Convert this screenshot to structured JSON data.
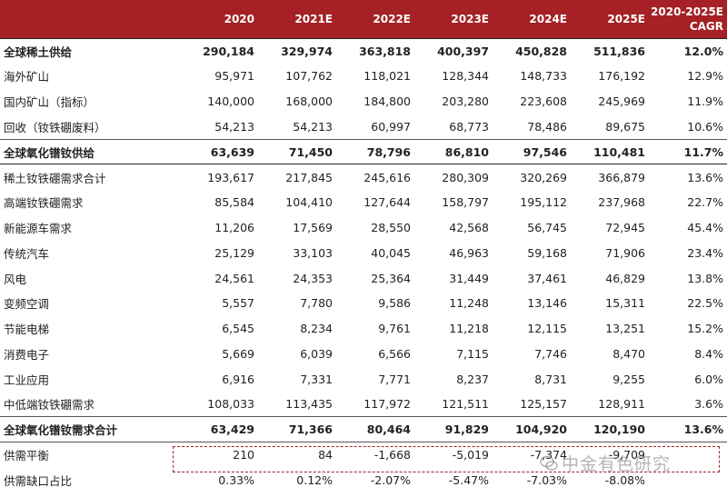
{
  "header": {
    "label": "",
    "years": [
      "2020",
      "2021E",
      "2022E",
      "2023E",
      "2024E",
      "2025E"
    ],
    "cagr_line1": "2020-2025E",
    "cagr_line2": "CAGR"
  },
  "rows": [
    {
      "label": "全球稀土供给",
      "values": [
        "290,184",
        "329,974",
        "363,818",
        "400,397",
        "450,828",
        "511,836"
      ],
      "cagr": "12.0%"
    },
    {
      "label": "海外矿山",
      "values": [
        "95,971",
        "107,762",
        "118,021",
        "128,344",
        "148,733",
        "176,192"
      ],
      "cagr": "12.9%"
    },
    {
      "label": "国内矿山（指标）",
      "values": [
        "140,000",
        "168,000",
        "184,800",
        "203,280",
        "223,608",
        "245,969"
      ],
      "cagr": "11.9%"
    },
    {
      "label": "回收（钕铁硼废料）",
      "values": [
        "54,213",
        "54,213",
        "60,997",
        "68,773",
        "78,486",
        "89,675"
      ],
      "cagr": "10.6%"
    },
    {
      "label": "全球氧化镨钕供给",
      "values": [
        "63,639",
        "71,450",
        "78,796",
        "86,810",
        "97,546",
        "110,481"
      ],
      "cagr": "11.7%"
    },
    {
      "label": "稀土钕铁硼需求合计",
      "values": [
        "193,617",
        "217,845",
        "245,616",
        "280,309",
        "320,269",
        "366,879"
      ],
      "cagr": "13.6%"
    },
    {
      "label": "高端钕铁硼需求",
      "values": [
        "85,584",
        "104,410",
        "127,644",
        "158,797",
        "195,112",
        "237,968"
      ],
      "cagr": "22.7%"
    },
    {
      "label": "新能源车需求",
      "values": [
        "11,206",
        "17,569",
        "28,550",
        "42,568",
        "56,745",
        "72,945"
      ],
      "cagr": "45.4%"
    },
    {
      "label": "传统汽车",
      "values": [
        "25,129",
        "33,103",
        "40,045",
        "46,963",
        "59,168",
        "71,906"
      ],
      "cagr": "23.4%"
    },
    {
      "label": "风电",
      "values": [
        "24,561",
        "24,353",
        "25,364",
        "31,449",
        "37,461",
        "46,829"
      ],
      "cagr": "13.8%"
    },
    {
      "label": "变频空调",
      "values": [
        "5,557",
        "7,780",
        "9,586",
        "11,248",
        "13,146",
        "15,311"
      ],
      "cagr": "22.5%"
    },
    {
      "label": "节能电梯",
      "values": [
        "6,545",
        "8,234",
        "9,761",
        "11,218",
        "12,115",
        "13,251"
      ],
      "cagr": "15.2%"
    },
    {
      "label": "消费电子",
      "values": [
        "5,669",
        "6,039",
        "6,566",
        "7,115",
        "7,746",
        "8,470"
      ],
      "cagr": "8.4%"
    },
    {
      "label": "工业应用",
      "values": [
        "6,916",
        "7,331",
        "7,771",
        "8,237",
        "8,731",
        "9,255"
      ],
      "cagr": "6.0%"
    },
    {
      "label": "中低端钕铁硼需求",
      "values": [
        "108,033",
        "113,435",
        "117,972",
        "121,511",
        "125,157",
        "128,911"
      ],
      "cagr": "3.6%"
    },
    {
      "label": "全球氧化镨钕需求合计",
      "values": [
        "63,429",
        "71,366",
        "80,464",
        "91,829",
        "104,920",
        "120,190"
      ],
      "cagr": "13.6%"
    },
    {
      "label": "供需平衡",
      "values": [
        "210",
        "84",
        "-1,668",
        "-5,019",
        "-7,374",
        "-9,709"
      ],
      "cagr": ""
    },
    {
      "label": "供需缺口占比",
      "values": [
        "0.33%",
        "0.12%",
        "-2.07%",
        "-5.47%",
        "-7.03%",
        "-8.08%"
      ],
      "cagr": ""
    }
  ],
  "watermark": {
    "text": "中金有色研究"
  },
  "colors": {
    "header_bg": "#a52125",
    "header_text": "#ffffff",
    "highlight_border": "#a52125"
  }
}
